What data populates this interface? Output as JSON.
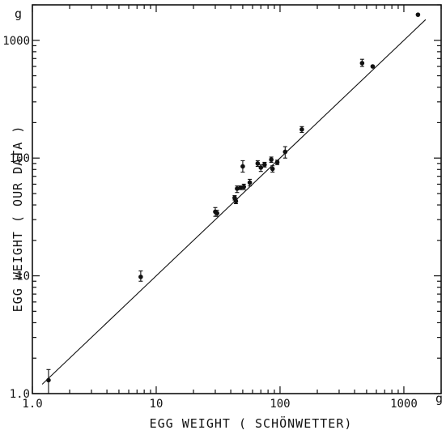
{
  "chart_data": {
    "type": "scatter",
    "title": "",
    "xlabel": "EGG WEIGHT ( SCHÖNWETTER)",
    "ylabel": "EGG WEIGHT ( OUR DATA )",
    "x_unit": "g",
    "y_unit": "g",
    "xscale": "log",
    "yscale": "log",
    "xlim": [
      1,
      2000
    ],
    "ylim": [
      1,
      2000
    ],
    "x_ticks": [
      {
        "value": 1,
        "label": "1.0"
      },
      {
        "value": 10,
        "label": "10"
      },
      {
        "value": 100,
        "label": "100"
      },
      {
        "value": 1000,
        "label": "1000"
      }
    ],
    "y_ticks": [
      {
        "value": 1,
        "label": "1.0"
      },
      {
        "value": 10,
        "label": "10"
      },
      {
        "value": 100,
        "label": "100"
      },
      {
        "value": 1000,
        "label": "1000"
      }
    ],
    "grid": false,
    "reference_line": {
      "type": "identity",
      "from": 1.2,
      "to": 1500
    },
    "points": [
      {
        "x": 1.35,
        "y": 1.3,
        "ylo": 1.0,
        "yhi": 1.6
      },
      {
        "x": 7.5,
        "y": 9.8,
        "ylo": 9.0,
        "yhi": 11.0
      },
      {
        "x": 30,
        "y": 35,
        "ylo": 32,
        "yhi": 38
      },
      {
        "x": 31,
        "y": 34,
        "ylo": 32,
        "yhi": 36
      },
      {
        "x": 43,
        "y": 46,
        "ylo": 44,
        "yhi": 48
      },
      {
        "x": 44,
        "y": 43,
        "ylo": 41,
        "yhi": 45
      },
      {
        "x": 45,
        "y": 55,
        "ylo": 51,
        "yhi": 58
      },
      {
        "x": 48,
        "y": 56,
        "ylo": 54,
        "yhi": 58
      },
      {
        "x": 50,
        "y": 85,
        "ylo": 76,
        "yhi": 95
      },
      {
        "x": 51,
        "y": 57,
        "ylo": 54,
        "yhi": 60
      },
      {
        "x": 57,
        "y": 62,
        "ylo": 58,
        "yhi": 66
      },
      {
        "x": 66,
        "y": 90,
        "ylo": 85,
        "yhi": 95
      },
      {
        "x": 70,
        "y": 83,
        "ylo": 77,
        "yhi": 88
      },
      {
        "x": 75,
        "y": 88,
        "ylo": 84,
        "yhi": 92
      },
      {
        "x": 85,
        "y": 97,
        "ylo": 92,
        "yhi": 102
      },
      {
        "x": 87,
        "y": 81,
        "ylo": 76,
        "yhi": 86
      },
      {
        "x": 95,
        "y": 92,
        "ylo": 88,
        "yhi": 96
      },
      {
        "x": 110,
        "y": 113,
        "ylo": 100,
        "yhi": 125
      },
      {
        "x": 150,
        "y": 175,
        "ylo": 165,
        "yhi": 185
      },
      {
        "x": 460,
        "y": 640,
        "ylo": 600,
        "yhi": 690
      },
      {
        "x": 560,
        "y": 600
      },
      {
        "x": 1300,
        "y": 1650
      }
    ]
  }
}
